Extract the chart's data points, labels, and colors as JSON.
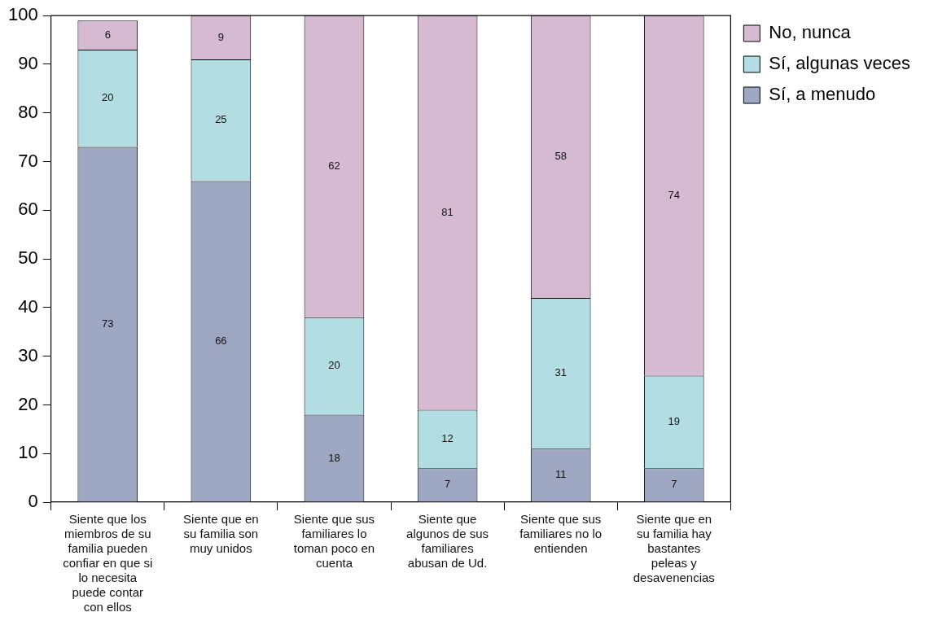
{
  "chart_data": {
    "type": "bar",
    "stacked": true,
    "categories": [
      "Siente que los miembros de su familia pueden confiar en que si lo necesita puede contar con ellos",
      "Siente que en su familia son muy unidos",
      "Siente que sus familiares lo toman poco en cuenta",
      "Siente que algunos de sus familiares abusan de Ud.",
      "Siente que sus familiares no lo entienden",
      "Siente que en su familia hay bastantes peleas y desavenencias"
    ],
    "series": [
      {
        "name": "Sí, a menudo",
        "color": "#9fa8c3",
        "values": [
          73,
          66,
          18,
          7,
          11,
          7
        ]
      },
      {
        "name": "Sí, algunas veces",
        "color": "#b1dde3",
        "values": [
          20,
          25,
          20,
          12,
          31,
          19
        ]
      },
      {
        "name": "No, nunca",
        "color": "#d5bad2",
        "values": [
          6,
          9,
          62,
          81,
          58,
          74
        ]
      }
    ],
    "ylim": [
      0,
      100
    ],
    "yticks": [
      0,
      10,
      20,
      30,
      40,
      50,
      60,
      70,
      80,
      90,
      100
    ],
    "grid": false,
    "legend": "top right",
    "data_labels": true
  }
}
